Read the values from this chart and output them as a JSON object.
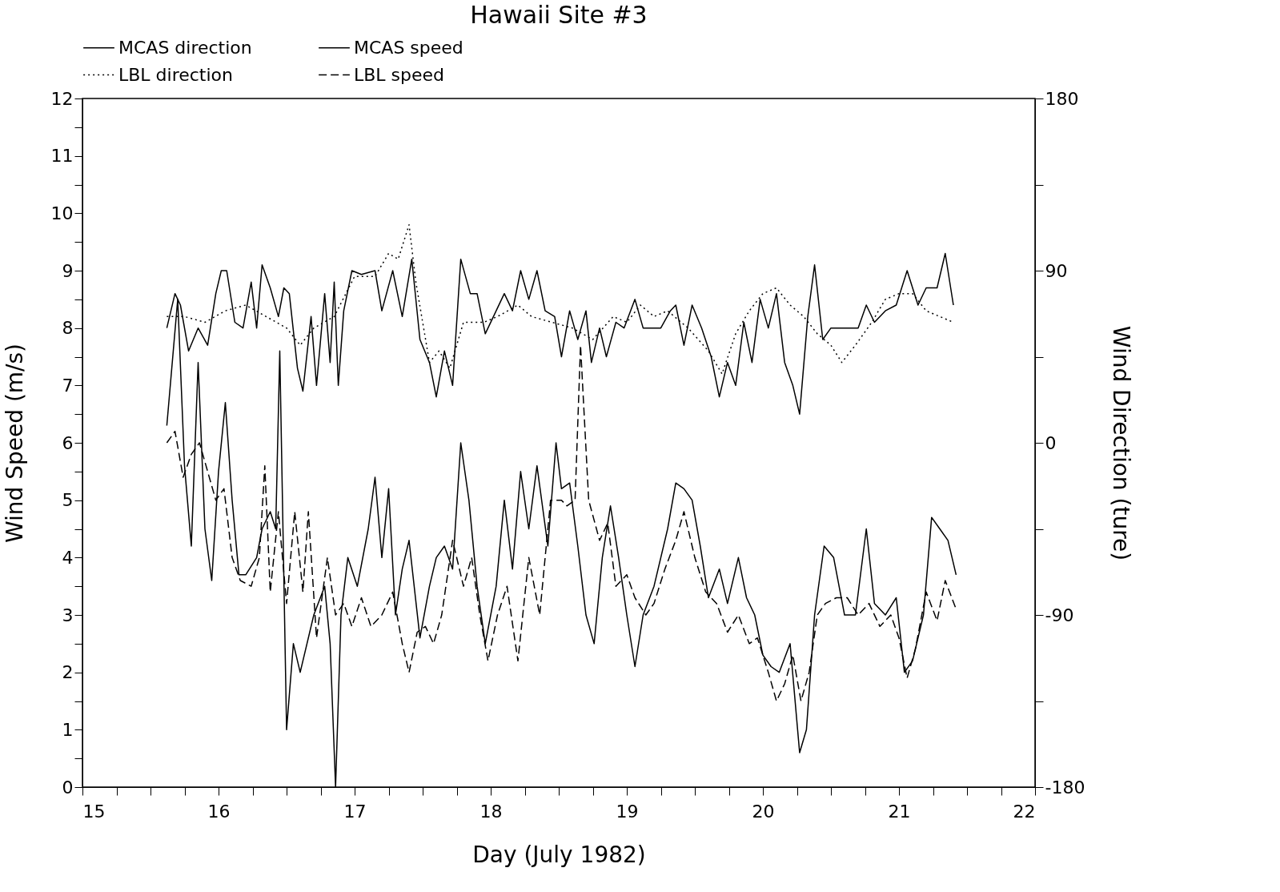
{
  "chart_data": {
    "type": "line",
    "title": "Hawaii Site #3",
    "xlabel": "Day (July 1982)",
    "ylabel": "Wind Speed (m/s)",
    "y2label": "Wind Direction (ture)",
    "xlim": [
      15,
      22
    ],
    "xticks": [
      15,
      {
        "value": 15.25,
        "label": null
      },
      {
        "value": 15.5,
        "label": null
      },
      {
        "value": 15.75,
        "label": null
      },
      16,
      {
        "value": 16.25,
        "label": null
      },
      {
        "value": 16.5,
        "label": null
      },
      {
        "value": 16.75,
        "label": null
      },
      17,
      {
        "value": 17.25,
        "label": null
      },
      {
        "value": 17.5,
        "label": null
      },
      {
        "value": 17.75,
        "label": null
      },
      18,
      {
        "value": 18.25,
        "label": null
      },
      {
        "value": 18.5,
        "label": null
      },
      {
        "value": 18.75,
        "label": null
      },
      19,
      {
        "value": 19.25,
        "label": null
      },
      {
        "value": 19.5,
        "label": null
      },
      {
        "value": 19.75,
        "label": null
      },
      20,
      {
        "value": 20.25,
        "label": null
      },
      {
        "value": 20.5,
        "label": null
      },
      {
        "value": 20.75,
        "label": null
      },
      21,
      {
        "value": 21.25,
        "label": null
      },
      {
        "value": 21.5,
        "label": null
      },
      {
        "value": 21.75,
        "label": null
      },
      22
    ],
    "ylim": [
      0,
      12
    ],
    "yticks": [
      0,
      {
        "value": 0.5,
        "label": null
      },
      1,
      {
        "value": 1.5,
        "label": null
      },
      2,
      {
        "value": 2.5,
        "label": null
      },
      3,
      {
        "value": 3.5,
        "label": null
      },
      4,
      {
        "value": 4.5,
        "label": null
      },
      5,
      {
        "value": 5.5,
        "label": null
      },
      6,
      {
        "value": 6.5,
        "label": null
      },
      7,
      {
        "value": 7.5,
        "label": null
      },
      8,
      {
        "value": 8.5,
        "label": null
      },
      9,
      {
        "value": 9.5,
        "label": null
      },
      10,
      {
        "value": 10.5,
        "label": null
      },
      11,
      {
        "value": 11.5,
        "label": null
      },
      12
    ],
    "y2lim": [
      -180,
      180
    ],
    "y2ticks": [
      -180,
      {
        "value": -135,
        "label": null
      },
      -90,
      {
        "value": -45,
        "label": null
      },
      0,
      {
        "value": 45,
        "label": null
      },
      90,
      {
        "value": 135,
        "label": null
      },
      180
    ],
    "grid": false,
    "legend": "top",
    "series": [
      {
        "name": "MCAS direction",
        "color": "#000000",
        "line_style": "solid",
        "axis": "y2",
        "x": [
          15.62,
          15.68,
          15.72,
          15.78,
          15.85,
          15.92,
          15.98,
          16.02,
          16.06,
          16.12,
          16.18,
          16.24,
          16.28,
          16.32,
          16.38,
          16.44,
          16.48,
          16.52,
          16.58,
          16.62,
          16.68,
          16.72,
          16.78,
          16.82,
          16.85,
          16.88,
          16.92,
          16.98,
          17.05,
          17.15,
          17.2,
          17.28,
          17.35,
          17.42,
          17.48,
          17.55,
          17.6,
          17.66,
          17.72,
          17.78,
          17.85,
          17.9,
          17.96,
          18.02,
          18.1,
          18.16,
          18.22,
          18.28,
          18.34,
          18.4,
          18.47,
          18.52,
          18.58,
          18.64,
          18.7,
          18.74,
          18.8,
          18.85,
          18.92,
          18.98,
          19.06,
          19.12,
          19.25,
          19.32,
          19.36,
          19.42,
          19.48,
          19.55,
          19.62,
          19.68,
          19.74,
          19.8,
          19.86,
          19.92,
          19.98,
          20.04,
          20.1,
          20.16,
          20.22,
          20.27,
          20.33,
          20.38,
          20.44,
          20.5,
          20.7,
          20.76,
          20.82,
          20.9,
          20.98,
          21.06,
          21.14,
          21.2,
          21.28,
          21.34,
          21.4
        ],
        "values": [
          60,
          78,
          72,
          48,
          60,
          51,
          78,
          90,
          90,
          63,
          60,
          84,
          60,
          93,
          81,
          66,
          81,
          78,
          39,
          27,
          66,
          30,
          78,
          42,
          84,
          30,
          69,
          90,
          88,
          90,
          69,
          90,
          66,
          96,
          54,
          42,
          24,
          48,
          30,
          96,
          78,
          78,
          57,
          66,
          78,
          69,
          90,
          75,
          90,
          69,
          66,
          45,
          69,
          54,
          69,
          42,
          60,
          45,
          63,
          60,
          75,
          60,
          60,
          69,
          72,
          51,
          72,
          60,
          45,
          24,
          42,
          30,
          63,
          42,
          75,
          60,
          78,
          42,
          30,
          15,
          66,
          93,
          54,
          60,
          60,
          72,
          63,
          69,
          72,
          90,
          72,
          81,
          81,
          99,
          72
        ]
      },
      {
        "name": "MCAS speed",
        "color": "#000000",
        "line_style": "solid",
        "x": [
          15.62,
          15.7,
          15.75,
          15.8,
          15.85,
          15.9,
          15.95,
          16.0,
          16.05,
          16.1,
          16.15,
          16.2,
          16.28,
          16.32,
          16.38,
          16.42,
          16.45,
          16.5,
          16.55,
          16.6,
          16.7,
          16.78,
          16.82,
          16.86,
          16.9,
          16.95,
          17.02,
          17.1,
          17.15,
          17.2,
          17.25,
          17.3,
          17.35,
          17.4,
          17.48,
          17.55,
          17.6,
          17.66,
          17.72,
          17.78,
          17.84,
          17.9,
          17.96,
          18.04,
          18.1,
          18.16,
          18.22,
          18.28,
          18.34,
          18.42,
          18.48,
          18.52,
          18.58,
          18.64,
          18.7,
          18.76,
          18.82,
          18.88,
          18.94,
          19.0,
          19.06,
          19.12,
          19.2,
          19.3,
          19.36,
          19.42,
          19.48,
          19.54,
          19.6,
          19.68,
          19.74,
          19.82,
          19.88,
          19.94,
          20.0,
          20.06,
          20.12,
          20.2,
          20.27,
          20.32,
          20.38,
          20.45,
          20.52,
          20.6,
          20.68,
          20.76,
          20.82,
          20.9,
          20.98,
          21.04,
          21.1,
          21.18,
          21.24,
          21.3,
          21.36,
          21.42
        ],
        "values": [
          6.3,
          8.5,
          5.6,
          4.2,
          7.4,
          4.5,
          3.6,
          5.5,
          6.7,
          5.0,
          3.7,
          3.7,
          4.0,
          4.5,
          4.8,
          4.5,
          7.6,
          1.0,
          2.5,
          2.0,
          3.0,
          3.5,
          2.5,
          0.0,
          3.0,
          4.0,
          3.5,
          4.5,
          5.4,
          4.0,
          5.2,
          3.0,
          3.8,
          4.3,
          2.6,
          3.5,
          4.0,
          4.2,
          3.8,
          6.0,
          5.0,
          3.5,
          2.5,
          3.5,
          5.0,
          3.8,
          5.5,
          4.5,
          5.6,
          4.2,
          6.0,
          5.2,
          5.3,
          4.2,
          3.0,
          2.5,
          4.0,
          4.9,
          4.0,
          3.0,
          2.1,
          3.0,
          3.5,
          4.5,
          5.3,
          5.2,
          5.0,
          4.2,
          3.3,
          3.8,
          3.2,
          4.0,
          3.3,
          3.0,
          2.3,
          2.1,
          2.0,
          2.5,
          0.6,
          1.0,
          3.0,
          4.2,
          4.0,
          3.0,
          3.0,
          4.5,
          3.2,
          3.0,
          3.3,
          2.0,
          2.2,
          3.0,
          4.7,
          4.5,
          4.3,
          3.7
        ]
      },
      {
        "name": "LBL direction",
        "color": "#000000",
        "line_style": "dotted",
        "axis": "y2",
        "x": [
          15.62,
          15.75,
          15.9,
          16.05,
          16.2,
          16.35,
          16.5,
          16.6,
          16.7,
          16.85,
          17.0,
          17.15,
          17.25,
          17.32,
          17.4,
          17.45,
          17.55,
          17.62,
          17.7,
          17.8,
          17.95,
          18.05,
          18.2,
          18.3,
          18.45,
          18.6,
          18.75,
          18.9,
          19.0,
          19.1,
          19.2,
          19.3,
          19.45,
          19.6,
          19.7,
          19.8,
          19.9,
          20.0,
          20.1,
          20.2,
          20.3,
          20.4,
          20.5,
          20.58,
          20.68,
          20.8,
          20.9,
          21.0,
          21.1,
          21.2,
          21.3,
          21.4
        ],
        "values": [
          66,
          66,
          63,
          69,
          72,
          66,
          60,
          51,
          60,
          66,
          87,
          87,
          99,
          96,
          114,
          84,
          42,
          48,
          39,
          63,
          63,
          66,
          72,
          66,
          63,
          60,
          54,
          66,
          63,
          72,
          66,
          69,
          60,
          48,
          36,
          57,
          69,
          78,
          81,
          72,
          66,
          57,
          51,
          42,
          51,
          63,
          75,
          78,
          78,
          69,
          66,
          63
        ]
      },
      {
        "name": "LBL speed",
        "color": "#000000",
        "line_style": "dashed",
        "x": [
          15.62,
          15.68,
          15.74,
          15.8,
          15.86,
          15.92,
          15.98,
          16.04,
          16.1,
          16.16,
          16.24,
          16.3,
          16.34,
          16.38,
          16.44,
          16.5,
          16.56,
          16.62,
          16.66,
          16.72,
          16.8,
          16.86,
          16.92,
          16.98,
          17.05,
          17.12,
          17.2,
          17.28,
          17.35,
          17.4,
          17.46,
          17.52,
          17.58,
          17.64,
          17.72,
          17.8,
          17.86,
          17.92,
          17.98,
          18.05,
          18.12,
          18.2,
          18.28,
          18.36,
          18.44,
          18.52,
          18.56,
          18.62,
          18.66,
          18.72,
          18.8,
          18.86,
          18.92,
          19.0,
          19.06,
          19.14,
          19.2,
          19.28,
          19.36,
          19.42,
          19.5,
          19.58,
          19.66,
          19.74,
          19.82,
          19.9,
          19.96,
          20.04,
          20.1,
          20.16,
          20.22,
          20.28,
          20.34,
          20.4,
          20.46,
          20.54,
          20.62,
          20.7,
          20.78,
          20.86,
          20.94,
          21.0,
          21.06,
          21.12,
          21.2,
          21.28,
          21.34,
          21.42
        ],
        "values": [
          6.0,
          6.2,
          5.4,
          5.8,
          6.0,
          5.5,
          5.0,
          5.2,
          4.0,
          3.6,
          3.5,
          4.0,
          5.6,
          3.4,
          4.8,
          3.2,
          4.8,
          3.4,
          4.8,
          2.6,
          4.0,
          3.0,
          3.2,
          2.8,
          3.3,
          2.8,
          3.0,
          3.4,
          2.5,
          2.0,
          2.7,
          2.8,
          2.5,
          3.0,
          4.3,
          3.5,
          4.0,
          3.0,
          2.2,
          3.0,
          3.5,
          2.2,
          4.0,
          3.0,
          5.0,
          5.0,
          4.9,
          5.0,
          7.7,
          5.0,
          4.3,
          4.6,
          3.5,
          3.7,
          3.3,
          3.0,
          3.2,
          3.8,
          4.3,
          4.8,
          4.0,
          3.4,
          3.2,
          2.7,
          3.0,
          2.5,
          2.6,
          2.0,
          1.5,
          1.8,
          2.3,
          1.5,
          2.0,
          3.0,
          3.2,
          3.3,
          3.3,
          3.0,
          3.2,
          2.8,
          3.0,
          2.6,
          1.9,
          2.4,
          3.4,
          2.9,
          3.6,
          3.1
        ]
      }
    ]
  }
}
